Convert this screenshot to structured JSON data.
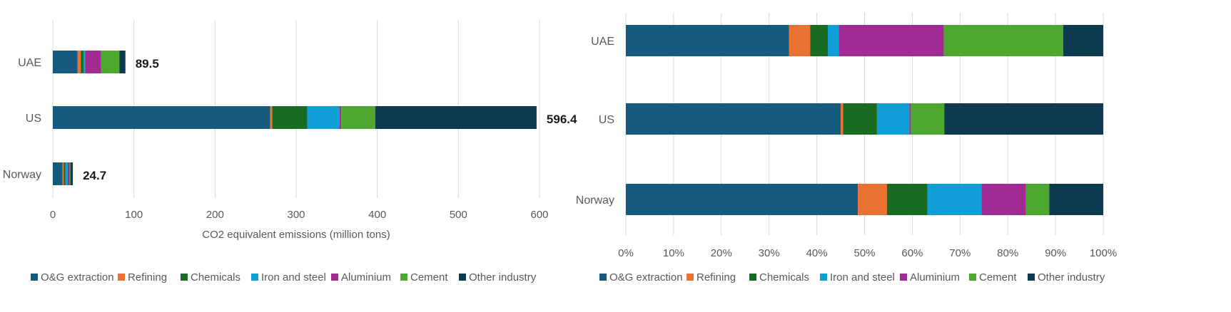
{
  "chart_data": [
    {
      "type": "bar",
      "orientation": "horizontal",
      "stacked": true,
      "title": "",
      "xlabel": "CO2 equivalent emissions (million tons)",
      "ylabel": "",
      "xlim": [
        0,
        600
      ],
      "xticks": [
        "0",
        "100",
        "200",
        "300",
        "400",
        "500",
        "600"
      ],
      "grid": true,
      "legend_position": "bottom",
      "categories": [
        "UAE",
        "US",
        "Norway"
      ],
      "totals": [
        "89.5",
        "596.4",
        "24.7"
      ],
      "series": [
        {
          "name": "O&G extraction",
          "color": "#165b7e",
          "values": [
            30.6,
            268.0,
            12.0
          ]
        },
        {
          "name": "Refining",
          "color": "#e97132",
          "values": [
            3.9,
            2.6,
            1.5
          ]
        },
        {
          "name": "Chemicals",
          "color": "#196b24",
          "values": [
            3.3,
            43.0,
            2.1
          ]
        },
        {
          "name": "Iron and steel",
          "color": "#0f9ed5",
          "values": [
            2.1,
            40.0,
            2.8
          ]
        },
        {
          "name": "Aluminium",
          "color": "#a02b93",
          "values": [
            19.7,
            2.0,
            2.3
          ]
        },
        {
          "name": "Cement",
          "color": "#4ea72e",
          "values": [
            22.4,
            42.0,
            1.2
          ]
        },
        {
          "name": "Other industry",
          "color": "#0e3a4f",
          "values": [
            7.5,
            198.8,
            2.8
          ]
        }
      ]
    },
    {
      "type": "bar",
      "orientation": "horizontal",
      "stacked": true,
      "percent": true,
      "title": "",
      "xlabel": "",
      "ylabel": "",
      "xlim": [
        0,
        100
      ],
      "xticks": [
        "0%",
        "10%",
        "20%",
        "30%",
        "40%",
        "50%",
        "60%",
        "70%",
        "80%",
        "90%",
        "100%"
      ],
      "grid": true,
      "legend_position": "bottom",
      "categories": [
        "UAE",
        "US",
        "Norway"
      ],
      "series": [
        {
          "name": "O&G extraction",
          "color": "#165b7e",
          "values": [
            34.2,
            45.0,
            48.6
          ]
        },
        {
          "name": "Refining",
          "color": "#e97132",
          "values": [
            4.4,
            0.5,
            6.1
          ]
        },
        {
          "name": "Chemicals",
          "color": "#196b24",
          "values": [
            3.7,
            7.1,
            8.5
          ]
        },
        {
          "name": "Iron and steel",
          "color": "#0f9ed5",
          "values": [
            2.3,
            6.8,
            11.3
          ]
        },
        {
          "name": "Aluminium",
          "color": "#a02b93",
          "values": [
            22.0,
            0.3,
            9.3
          ]
        },
        {
          "name": "Cement",
          "color": "#4ea72e",
          "values": [
            25.0,
            7.0,
            4.9
          ]
        },
        {
          "name": "Other industry",
          "color": "#0e3a4f",
          "values": [
            8.4,
            33.3,
            11.3
          ]
        }
      ]
    }
  ]
}
